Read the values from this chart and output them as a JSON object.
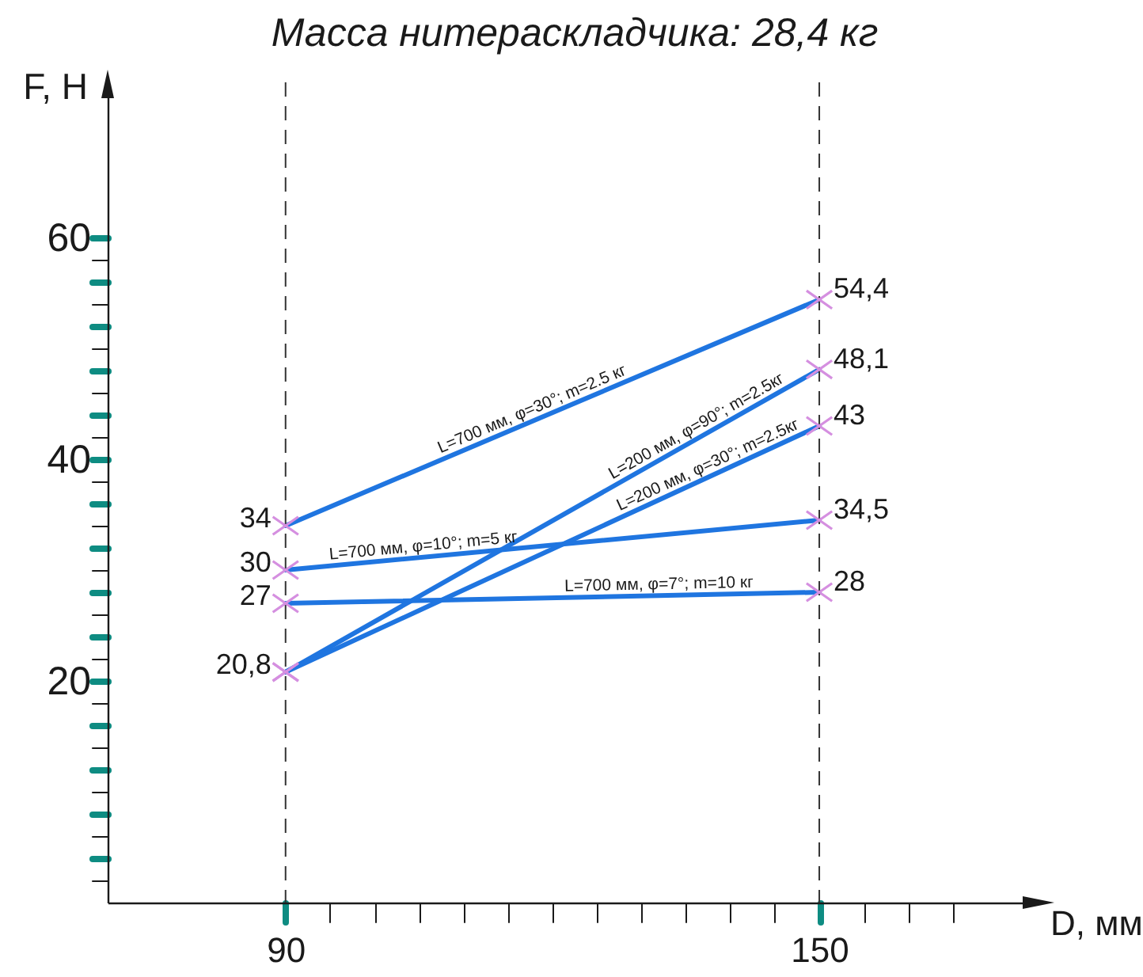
{
  "chart_data": {
    "type": "line",
    "title": "Масса нитераскладчика: 28,4 кг",
    "xlabel": "D, мм",
    "ylabel": "F, Н",
    "x": [
      90,
      150
    ],
    "series": [
      {
        "name": "L=700 мм, φ=30°; m=2.5 кг",
        "color": "#1f75e0",
        "values": [
          34,
          54.4
        ],
        "value_labels": [
          "34",
          "54,4"
        ]
      },
      {
        "name": "L=200 мм, φ=90°; m=2.5кг",
        "color": "#1f75e0",
        "values": [
          20.8,
          48.1
        ],
        "value_labels": [
          "20,8",
          "48,1"
        ]
      },
      {
        "name": "L=200 мм, φ=30°; m=2.5кг",
        "color": "#1f75e0",
        "values": [
          20.8,
          43
        ],
        "value_labels": [
          null,
          "43"
        ]
      },
      {
        "name": "L=700 мм, φ=10°; m=5 кг",
        "color": "#1f75e0",
        "values": [
          30,
          34.5
        ],
        "value_labels": [
          "30",
          "34,5"
        ]
      },
      {
        "name": "L=700 мм, φ=7°; m=10 кг",
        "color": "#1f75e0",
        "values": [
          27,
          28
        ],
        "value_labels": [
          "27",
          "28"
        ]
      }
    ],
    "xlim": [
      70,
      175
    ],
    "xticks": [
      90,
      {
        "value": 95,
        "label": null
      },
      {
        "value": 100,
        "label": null
      },
      {
        "value": 105,
        "label": null
      },
      {
        "value": 110,
        "label": null
      },
      {
        "value": 115,
        "label": null
      },
      {
        "value": 120,
        "label": null
      },
      {
        "value": 125,
        "label": null
      },
      {
        "value": 130,
        "label": null
      },
      {
        "value": 135,
        "label": null
      },
      {
        "value": 140,
        "label": null
      },
      {
        "value": 145,
        "label": null
      },
      150,
      {
        "value": 155,
        "label": null
      },
      {
        "value": 160,
        "label": null
      },
      {
        "value": 165,
        "label": null
      }
    ],
    "ylim": [
      0,
      74
    ],
    "yticks": [
      {
        "value": 2,
        "label": null
      },
      {
        "value": 4,
        "label": null
      },
      {
        "value": 6,
        "label": null
      },
      {
        "value": 8,
        "label": null
      },
      {
        "value": 10,
        "label": null
      },
      {
        "value": 12,
        "label": null
      },
      {
        "value": 14,
        "label": null
      },
      {
        "value": 16,
        "label": null
      },
      {
        "value": 18,
        "label": null
      },
      20,
      {
        "value": 22,
        "label": null
      },
      {
        "value": 24,
        "label": null
      },
      {
        "value": 26,
        "label": null
      },
      {
        "value": 28,
        "label": null
      },
      {
        "value": 30,
        "label": null
      },
      {
        "value": 32,
        "label": null
      },
      {
        "value": 34,
        "label": null
      },
      {
        "value": 36,
        "label": null
      },
      {
        "value": 38,
        "label": null
      },
      40,
      {
        "value": 42,
        "label": null
      },
      {
        "value": 44,
        "label": null
      },
      {
        "value": 46,
        "label": null
      },
      {
        "value": 48,
        "label": null
      },
      {
        "value": 50,
        "label": null
      },
      {
        "value": 52,
        "label": null
      },
      {
        "value": 54,
        "label": null
      },
      {
        "value": 56,
        "label": null
      },
      {
        "value": 58,
        "label": null
      },
      60
    ],
    "ref_lines": [
      {
        "axis": "x",
        "value": 90,
        "line_style": "dashed",
        "color": "#333333"
      },
      {
        "axis": "x",
        "value": 150,
        "line_style": "dashed",
        "color": "#333333"
      }
    ],
    "marker": "cross",
    "line_style": "solid"
  }
}
